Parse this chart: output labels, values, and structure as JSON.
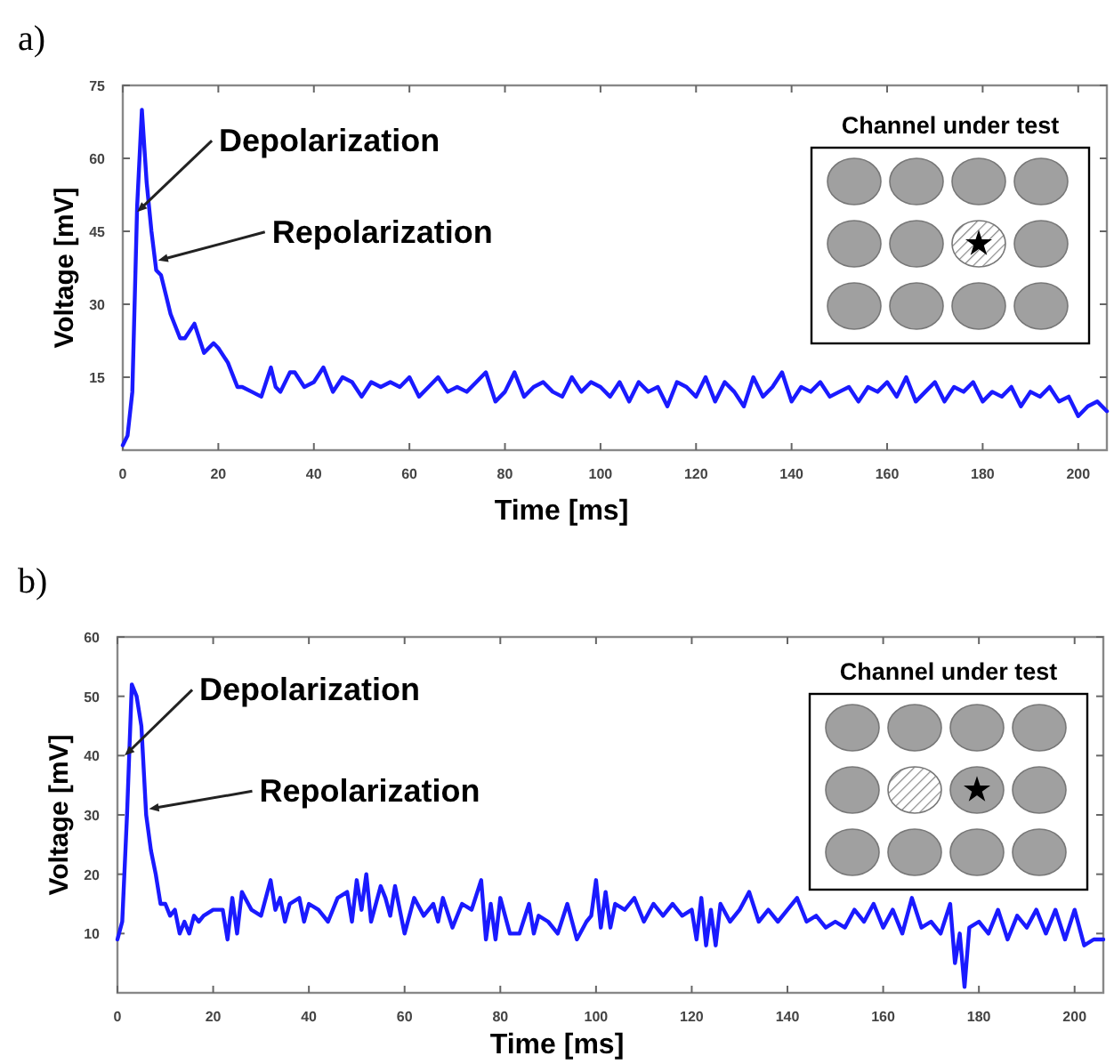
{
  "chart_data": [
    {
      "type": "line",
      "title": "a)",
      "xlabel": "Time [ms]",
      "ylabel": "Voltage [mV]",
      "xlim": [
        0,
        206
      ],
      "ylim": [
        0,
        75
      ],
      "xticks": [
        0,
        20,
        40,
        60,
        80,
        100,
        120,
        140,
        160,
        180,
        200
      ],
      "yticks": [
        15,
        30,
        45,
        60,
        75
      ],
      "grid": false,
      "annotations": [
        {
          "text": "Depolarization",
          "x": 3,
          "y": 49
        },
        {
          "text": "Repolarization",
          "x": 7.4,
          "y": 39
        },
        "Channel under test"
      ],
      "series": [
        {
          "color": "#1a1aff",
          "x": [
            0,
            1,
            2,
            3,
            4,
            5,
            6,
            7,
            8,
            9,
            10,
            12,
            13,
            15,
            17,
            19,
            20,
            22,
            24,
            25,
            27,
            29,
            31,
            32,
            33,
            35,
            36,
            38,
            40,
            42,
            44,
            46,
            48,
            50,
            52,
            54,
            56,
            58,
            60,
            62,
            64,
            66,
            68,
            70,
            72,
            74,
            76,
            78,
            80,
            82,
            84,
            86,
            88,
            90,
            92,
            94,
            96,
            98,
            100,
            102,
            104,
            106,
            108,
            110,
            112,
            114,
            116,
            118,
            120,
            122,
            124,
            126,
            128,
            130,
            132,
            134,
            136,
            138,
            140,
            142,
            144,
            146,
            148,
            150,
            152,
            154,
            156,
            158,
            160,
            162,
            164,
            166,
            168,
            170,
            172,
            174,
            176,
            178,
            180,
            182,
            184,
            186,
            188,
            190,
            192,
            194,
            196,
            198,
            200,
            202,
            204,
            206
          ],
          "values": [
            1,
            3,
            12,
            50,
            70,
            55,
            45,
            37,
            36,
            32,
            28,
            23,
            23,
            26,
            20,
            22,
            21,
            18,
            13,
            13,
            12,
            11,
            17,
            13,
            12,
            16,
            16,
            13,
            14,
            17,
            12,
            15,
            14,
            11,
            14,
            13,
            14,
            13,
            15,
            11,
            13,
            15,
            12,
            13,
            12,
            14,
            16,
            10,
            12,
            16,
            11,
            13,
            14,
            12,
            11,
            15,
            12,
            14,
            13,
            11,
            14,
            10,
            14,
            12,
            13,
            9,
            14,
            13,
            11,
            15,
            10,
            14,
            12,
            9,
            15,
            11,
            13,
            16,
            10,
            13,
            12,
            14,
            11,
            12,
            13,
            10,
            13,
            12,
            14,
            11,
            15,
            10,
            12,
            14,
            10,
            13,
            12,
            14,
            10,
            12,
            11,
            13,
            9,
            12,
            11,
            13,
            10,
            11,
            7,
            9,
            10,
            8
          ]
        }
      ]
    },
    {
      "type": "line",
      "title": "b)",
      "xlabel": "Time [ms]",
      "ylabel": "Voltage [mV]",
      "xlim": [
        0,
        206
      ],
      "ylim": [
        0,
        60
      ],
      "xticks": [
        0,
        20,
        40,
        60,
        80,
        100,
        120,
        140,
        160,
        180,
        200
      ],
      "yticks": [
        10,
        20,
        30,
        40,
        50,
        60
      ],
      "grid": false,
      "annotations": [
        {
          "text": "Depolarization",
          "x": 1.5,
          "y": 40
        },
        {
          "text": "Repolarization",
          "x": 6.6,
          "y": 31
        },
        "Channel under test"
      ],
      "series": [
        {
          "color": "#1a1aff",
          "x": [
            0,
            1,
            2,
            3,
            4,
            5,
            6,
            7,
            8,
            9,
            10,
            11,
            12,
            13,
            14,
            15,
            16,
            17,
            18,
            20,
            22,
            23,
            24,
            25,
            26,
            28,
            30,
            32,
            33,
            34,
            35,
            36,
            38,
            39,
            40,
            42,
            44,
            46,
            48,
            49,
            50,
            51,
            52,
            53,
            55,
            56,
            57,
            58,
            60,
            62,
            64,
            66,
            67,
            68,
            70,
            72,
            74,
            76,
            77,
            78,
            79,
            80,
            82,
            84,
            86,
            87,
            88,
            90,
            92,
            94,
            96,
            98,
            99,
            100,
            101,
            102,
            103,
            104,
            106,
            108,
            110,
            112,
            114,
            116,
            118,
            120,
            121,
            122,
            123,
            124,
            125,
            126,
            128,
            130,
            132,
            134,
            136,
            138,
            140,
            142,
            144,
            146,
            148,
            150,
            152,
            154,
            156,
            158,
            160,
            162,
            164,
            166,
            168,
            170,
            172,
            174,
            175,
            176,
            177,
            178,
            180,
            182,
            184,
            186,
            188,
            190,
            192,
            194,
            196,
            198,
            200,
            202,
            204,
            206
          ],
          "values": [
            9,
            12,
            30,
            52,
            50,
            45,
            30,
            24,
            20,
            15,
            15,
            13,
            14,
            10,
            12,
            10,
            13,
            12,
            13,
            14,
            14,
            9,
            16,
            10,
            17,
            14,
            13,
            19,
            14,
            16,
            12,
            15,
            16,
            12,
            15,
            14,
            12,
            16,
            17,
            12,
            19,
            14,
            20,
            12,
            18,
            16,
            13,
            18,
            10,
            16,
            13,
            15,
            12,
            16,
            11,
            15,
            14,
            19,
            9,
            15,
            9,
            16,
            10,
            10,
            15,
            10,
            13,
            12,
            10,
            15,
            9,
            12,
            13,
            19,
            11,
            17,
            11,
            15,
            14,
            16,
            12,
            15,
            13,
            15,
            13,
            14,
            9,
            16,
            8,
            14,
            8,
            15,
            12,
            14,
            17,
            12,
            14,
            12,
            14,
            16,
            12,
            13,
            11,
            12,
            11,
            14,
            12,
            15,
            11,
            14,
            10,
            16,
            11,
            12,
            10,
            15,
            5,
            10,
            1,
            11,
            12,
            10,
            14,
            9,
            13,
            11,
            14,
            10,
            14,
            9,
            14,
            8,
            9,
            9
          ]
        }
      ]
    }
  ]
}
